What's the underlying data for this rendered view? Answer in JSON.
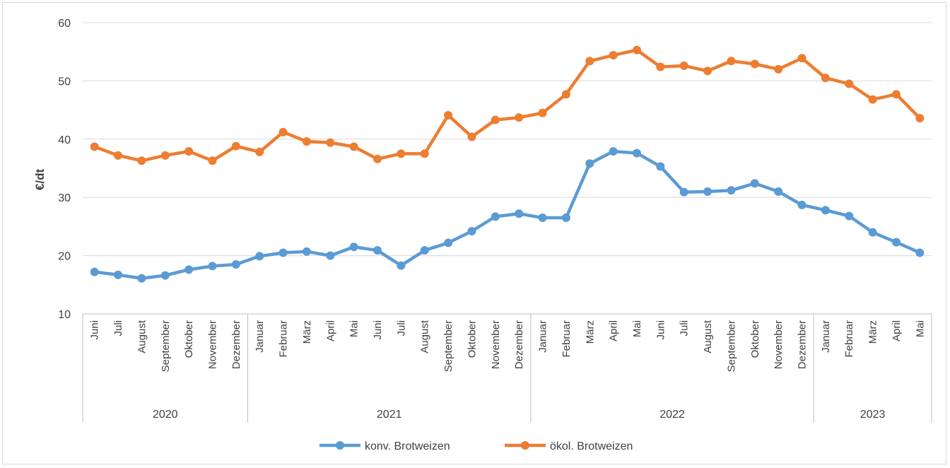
{
  "chart_data": {
    "type": "line",
    "title": "",
    "xlabel": "",
    "ylabel": "€/dt",
    "ylim": [
      10,
      60
    ],
    "yticks": [
      10,
      20,
      30,
      40,
      50,
      60
    ],
    "grid": true,
    "legend_position": "bottom",
    "years": [
      {
        "label": "2020",
        "months": 7
      },
      {
        "label": "2021",
        "months": 12
      },
      {
        "label": "2022",
        "months": 12
      },
      {
        "label": "2023",
        "months": 5
      }
    ],
    "categories": [
      "Juni",
      "Juli",
      "August",
      "September",
      "Oktober",
      "November",
      "Dezember",
      "Januar",
      "Februar",
      "März",
      "April",
      "Mai",
      "Juni",
      "Juli",
      "August",
      "September",
      "Oktober",
      "November",
      "Dezember",
      "Januar",
      "Februar",
      "März",
      "April",
      "Mai",
      "Juni",
      "Juli",
      "August",
      "September",
      "Oktober",
      "November",
      "Dezember",
      "Januar",
      "Februar",
      "März",
      "April",
      "Mai"
    ],
    "series": [
      {
        "name": "konv. Brotweizen",
        "color": "#5B9BD5",
        "values": [
          17.2,
          16.7,
          16.1,
          16.6,
          17.6,
          18.2,
          18.5,
          19.9,
          20.5,
          20.7,
          20.0,
          21.5,
          20.9,
          18.3,
          20.9,
          22.2,
          24.2,
          26.7,
          27.2,
          26.5,
          26.5,
          35.8,
          37.9,
          37.6,
          35.3,
          30.9,
          31.0,
          31.2,
          32.4,
          31.0,
          28.7,
          27.8,
          26.8,
          24.0,
          22.3,
          20.5
        ]
      },
      {
        "name": "ökol. Brotweizen",
        "color": "#ED7D31",
        "values": [
          38.7,
          37.2,
          36.3,
          37.2,
          37.9,
          36.3,
          38.8,
          37.8,
          41.2,
          39.6,
          39.4,
          38.7,
          36.6,
          37.5,
          37.5,
          44.1,
          40.4,
          43.3,
          43.7,
          44.5,
          47.7,
          53.4,
          54.4,
          55.3,
          52.4,
          52.6,
          51.7,
          53.4,
          52.9,
          52.0,
          53.9,
          50.5,
          49.5,
          46.8,
          47.7,
          43.6
        ]
      }
    ]
  }
}
